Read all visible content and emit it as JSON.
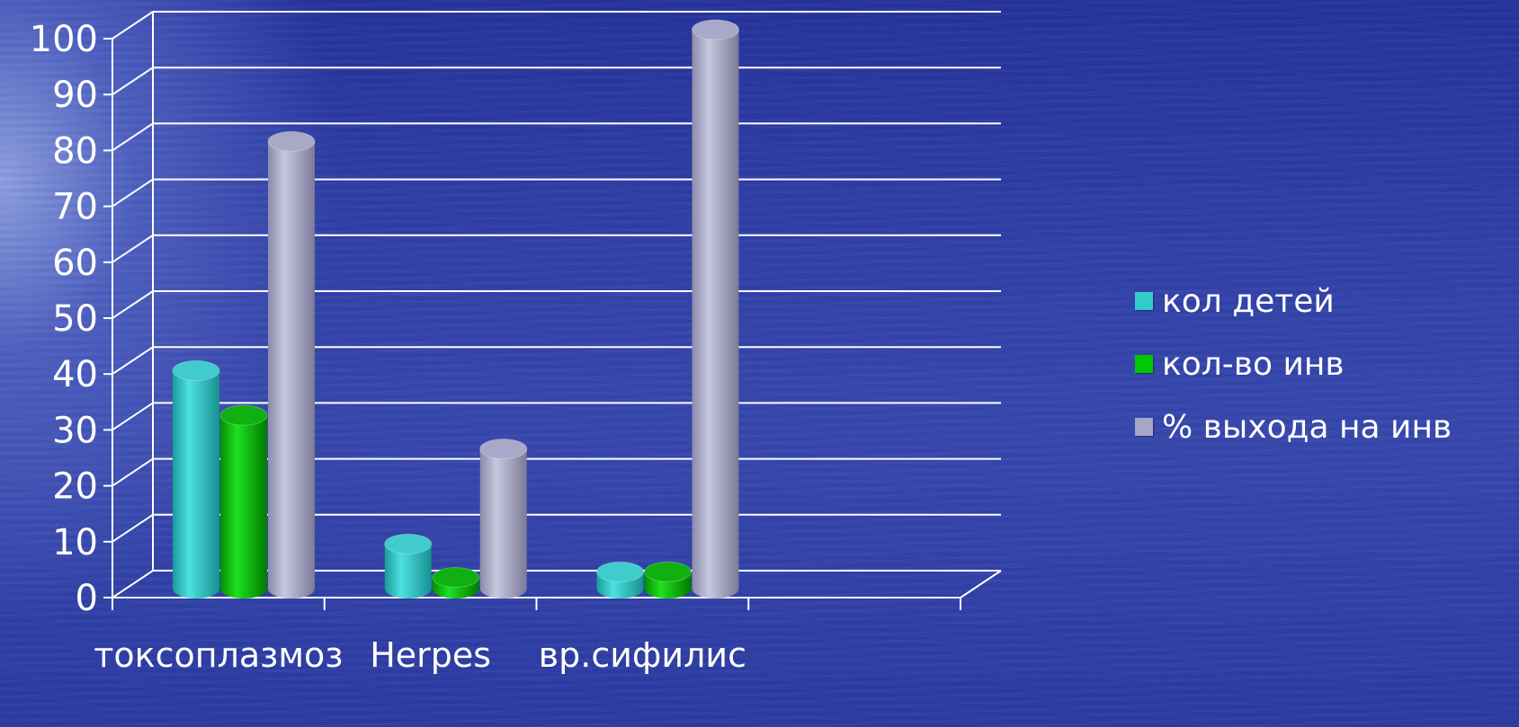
{
  "chart_data": {
    "type": "bar",
    "style": "3d-cylinder",
    "categories": [
      "токсоплазмоз",
      "Herpes",
      "вр.сифилис"
    ],
    "series": [
      {
        "name": "кол детей",
        "values": [
          39,
          8,
          3
        ],
        "color": "#33cccc"
      },
      {
        "name": "кол-во инв",
        "values": [
          31,
          2,
          3
        ],
        "color": "#00c800"
      },
      {
        "name": "% выхода на инв",
        "values": [
          80,
          25,
          100
        ],
        "color": "#a6a6c6"
      }
    ],
    "y_ticks": [
      "0",
      "10",
      "20",
      "30",
      "40",
      "50",
      "60",
      "70",
      "80",
      "90",
      "100"
    ],
    "ylim": [
      0,
      100
    ],
    "grid": true,
    "legend_position": "right"
  }
}
